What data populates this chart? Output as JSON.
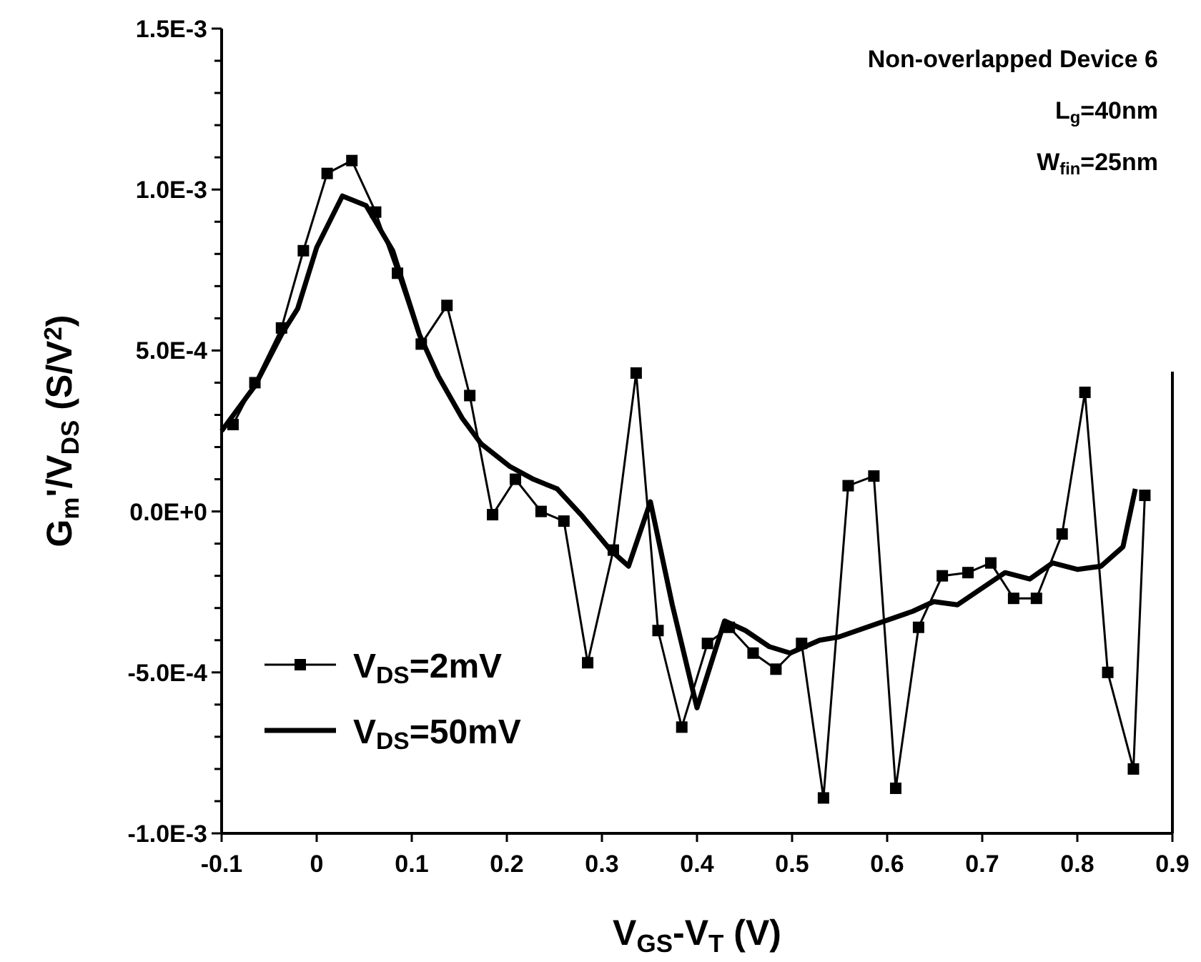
{
  "chart_data": {
    "type": "line",
    "xlabel": "V$_{GS}$-V$_{T}$ (V)",
    "ylabel": "G$_{m}$'/V$_{DS}$ (S/V$^{2}$)",
    "annotations": [
      "Non-overlapped Device 6",
      "L$_{g}$=40nm",
      "W$_{fin}$=25nm"
    ],
    "xlim": [
      -0.1,
      0.9
    ],
    "xticks": [
      -0.1,
      0,
      0.1,
      0.2,
      0.3,
      0.4,
      0.5,
      0.6,
      0.7,
      0.8,
      0.9
    ],
    "ylim": [
      -0.001,
      0.0015
    ],
    "yticks": [
      {
        "value": -0.001,
        "label": "-1.0E-3"
      },
      {
        "value": -0.0009,
        "label": null
      },
      {
        "value": -0.0008,
        "label": null
      },
      {
        "value": -0.0007,
        "label": null
      },
      {
        "value": -0.0006,
        "label": null
      },
      {
        "value": -0.0005,
        "label": "-5.0E-4"
      },
      {
        "value": -0.0004,
        "label": null
      },
      {
        "value": -0.0003,
        "label": null
      },
      {
        "value": -0.0002,
        "label": null
      },
      {
        "value": -0.0001,
        "label": null
      },
      {
        "value": 0,
        "label": "0.0E+0"
      },
      {
        "value": 0.0001,
        "label": null
      },
      {
        "value": 0.0002,
        "label": null
      },
      {
        "value": 0.0003,
        "label": null
      },
      {
        "value": 0.0004,
        "label": null
      },
      {
        "value": 0.0005,
        "label": "5.0E-4"
      },
      {
        "value": 0.0006,
        "label": null
      },
      {
        "value": 0.0007,
        "label": null
      },
      {
        "value": 0.0008,
        "label": null
      },
      {
        "value": 0.0009,
        "label": null
      },
      {
        "value": 0.001,
        "label": "1.0E-3"
      },
      {
        "value": 0.0011,
        "label": null
      },
      {
        "value": 0.0012,
        "label": null
      },
      {
        "value": 0.0013,
        "label": null
      },
      {
        "value": 0.0014,
        "label": null
      },
      {
        "value": 0.0015,
        "label": "1.5E-3"
      }
    ],
    "grid": false,
    "legend": "bottom left",
    "series": [
      {
        "name": "V$_{DS}$=2mV",
        "color": "#000000",
        "marker": "square",
        "x": [
          -0.088,
          -0.065,
          -0.037,
          -0.014,
          0.011,
          0.037,
          0.062,
          0.085,
          0.11,
          0.137,
          0.161,
          0.185,
          0.209,
          0.236,
          0.26,
          0.285,
          0.312,
          0.336,
          0.359,
          0.384,
          0.411,
          0.434,
          0.459,
          0.483,
          0.51,
          0.533,
          0.559,
          0.586,
          0.609,
          0.633,
          0.658,
          0.685,
          0.709,
          0.733,
          0.757,
          0.784,
          0.808,
          0.832,
          0.859,
          0.871
        ],
        "values": [
          0.00027,
          0.0004,
          0.00057,
          0.00081,
          0.00105,
          0.00109,
          0.00093,
          0.00074,
          0.00052,
          0.00064,
          0.00036,
          -1e-05,
          0.0001,
          0,
          -3e-05,
          -0.00047,
          -0.00012,
          0.00043,
          -0.00037,
          -0.00067,
          -0.00041,
          -0.00036,
          -0.00044,
          -0.00049,
          -0.00041,
          -0.00089,
          8e-05,
          0.00011,
          -0.00086,
          -0.00036,
          -0.0002,
          -0.00019,
          -0.00016,
          -0.00027,
          -0.00027,
          -7e-05,
          0.00037,
          -0.0005,
          -0.0008,
          5e-05
        ]
      },
      {
        "name": "V$_{DS}$=50mV",
        "color": "#000000",
        "marker": "none",
        "x": [
          -0.1,
          -0.065,
          -0.037,
          -0.02,
          0,
          0.027,
          0.052,
          0.08,
          0.108,
          0.128,
          0.153,
          0.173,
          0.203,
          0.228,
          0.253,
          0.278,
          0.309,
          0.328,
          0.351,
          0.374,
          0.4,
          0.429,
          0.451,
          0.476,
          0.498,
          0.529,
          0.549,
          0.627,
          0.649,
          0.674,
          0.724,
          0.75,
          0.774,
          0.8,
          0.825,
          0.848,
          0.861
        ],
        "values": [
          0.00025,
          0.00039,
          0.00055,
          0.00063,
          0.00082,
          0.00098,
          0.00095,
          0.00081,
          0.00055,
          0.00042,
          0.00029,
          0.00021,
          0.00014,
          0.0001,
          7e-05,
          -1e-05,
          -0.00012,
          -0.00017,
          3e-05,
          -0.00029,
          -0.00061,
          -0.00034,
          -0.00037,
          -0.00042,
          -0.00044,
          -0.0004,
          -0.00039,
          -0.00031,
          -0.00028,
          -0.00029,
          -0.00019,
          -0.00021,
          -0.00016,
          -0.00018,
          -0.00017,
          -0.00011,
          7e-05
        ]
      }
    ]
  }
}
